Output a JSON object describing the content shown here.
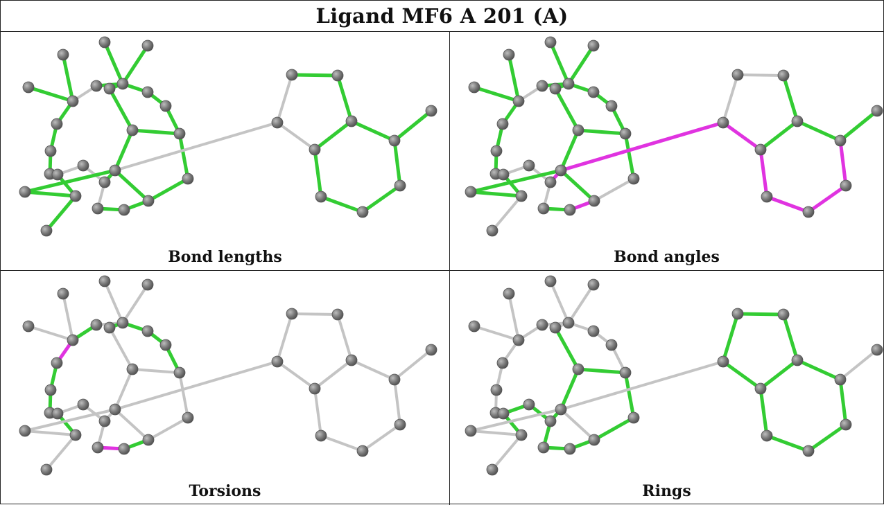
{
  "title": "Ligand MF6 A 201 (A)",
  "colors": {
    "bond_default": "#c4c4c4",
    "bond_highlight_green": "#33cc33",
    "bond_highlight_magenta": "#e033e0",
    "atom": "#777777"
  },
  "panels": [
    {
      "key": "bond-lengths",
      "caption": "Bond lengths"
    },
    {
      "key": "bond-angles",
      "caption": "Bond angles"
    },
    {
      "key": "torsions",
      "caption": "Torsions"
    },
    {
      "key": "rings",
      "caption": "Rings"
    }
  ]
}
